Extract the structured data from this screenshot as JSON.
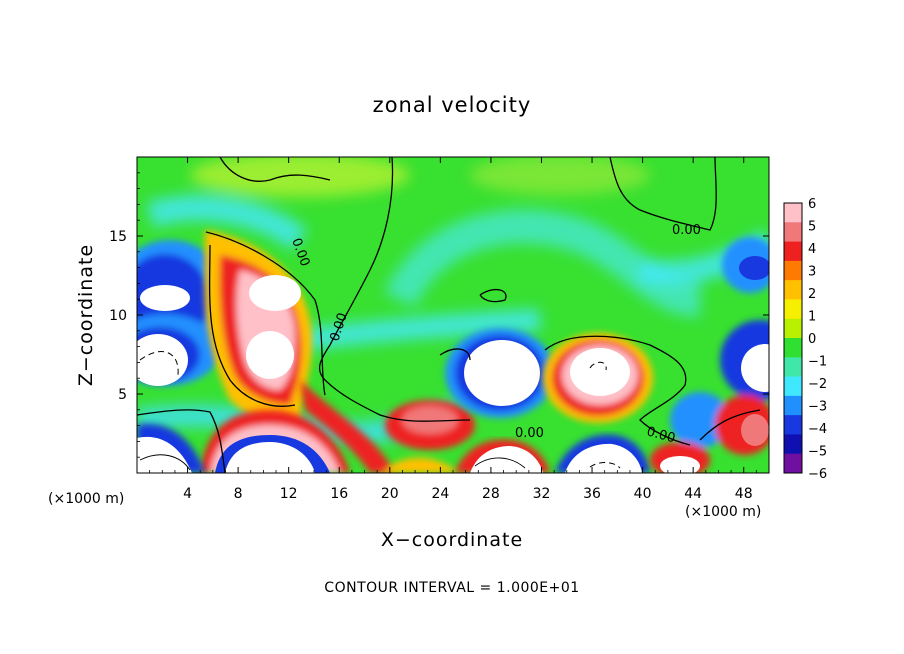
{
  "chart_data": {
    "type": "heatmap",
    "title": "zonal velocity",
    "xlabel": "X−coordinate",
    "ylabel": "Z−coordinate",
    "x_unit_left": "(×1000 m)",
    "x_unit_right": "(×1000 m)",
    "footer": "CONTOUR INTERVAL = 1.000E+01",
    "xlim": [
      0,
      50
    ],
    "ylim": [
      0,
      20
    ],
    "x_ticks": [
      4,
      8,
      12,
      16,
      20,
      24,
      28,
      32,
      36,
      40,
      44,
      48
    ],
    "y_ticks": [
      5,
      10,
      15
    ],
    "colorbar": {
      "min": -6,
      "max": 6,
      "ticks": [
        6,
        5,
        4,
        3,
        2,
        1,
        0,
        -1,
        -2,
        -3,
        -4,
        -5,
        -6
      ],
      "colors": [
        "#ffc0c8",
        "#f07878",
        "#ee2020",
        "#ff7a00",
        "#ffc000",
        "#f6f000",
        "#b8f000",
        "#30e030",
        "#40e8a8",
        "#40e8ff",
        "#2090ff",
        "#1838e0",
        "#1010b0",
        "#7010a0"
      ]
    },
    "contour_labels": [
      "0.00",
      "0.00",
      "0.00",
      "0.00",
      "0.00"
    ],
    "grid": false,
    "legend": "colorbar-right"
  }
}
